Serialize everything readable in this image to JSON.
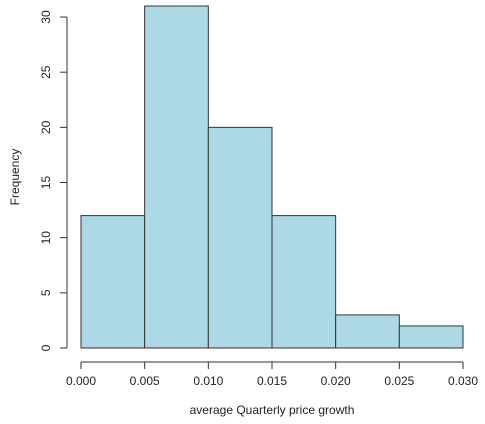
{
  "chart_data": {
    "type": "histogram",
    "x_label": "average Quarterly price growth",
    "y_label": "Frequency",
    "bins": [
      0,
      0.005,
      0.01,
      0.015,
      0.02,
      0.025,
      0.03
    ],
    "values": [
      12,
      31,
      20,
      12,
      3,
      2
    ],
    "color": "#add8e6",
    "edge_color": "#333333",
    "xlim": [
      0,
      0.03
    ],
    "ylim": [
      0,
      31
    ],
    "xticks": [
      {
        "value": 0,
        "label": "0.000"
      },
      {
        "value": 0.005,
        "label": "0.005"
      },
      {
        "value": 0.01,
        "label": "0.010"
      },
      {
        "value": 0.015,
        "label": "0.015"
      },
      {
        "value": 0.02,
        "label": "0.020"
      },
      {
        "value": 0.025,
        "label": "0.025"
      },
      {
        "value": 0.03,
        "label": "0.030"
      }
    ],
    "yticks": [
      0,
      5,
      10,
      15,
      20,
      25,
      30
    ]
  }
}
